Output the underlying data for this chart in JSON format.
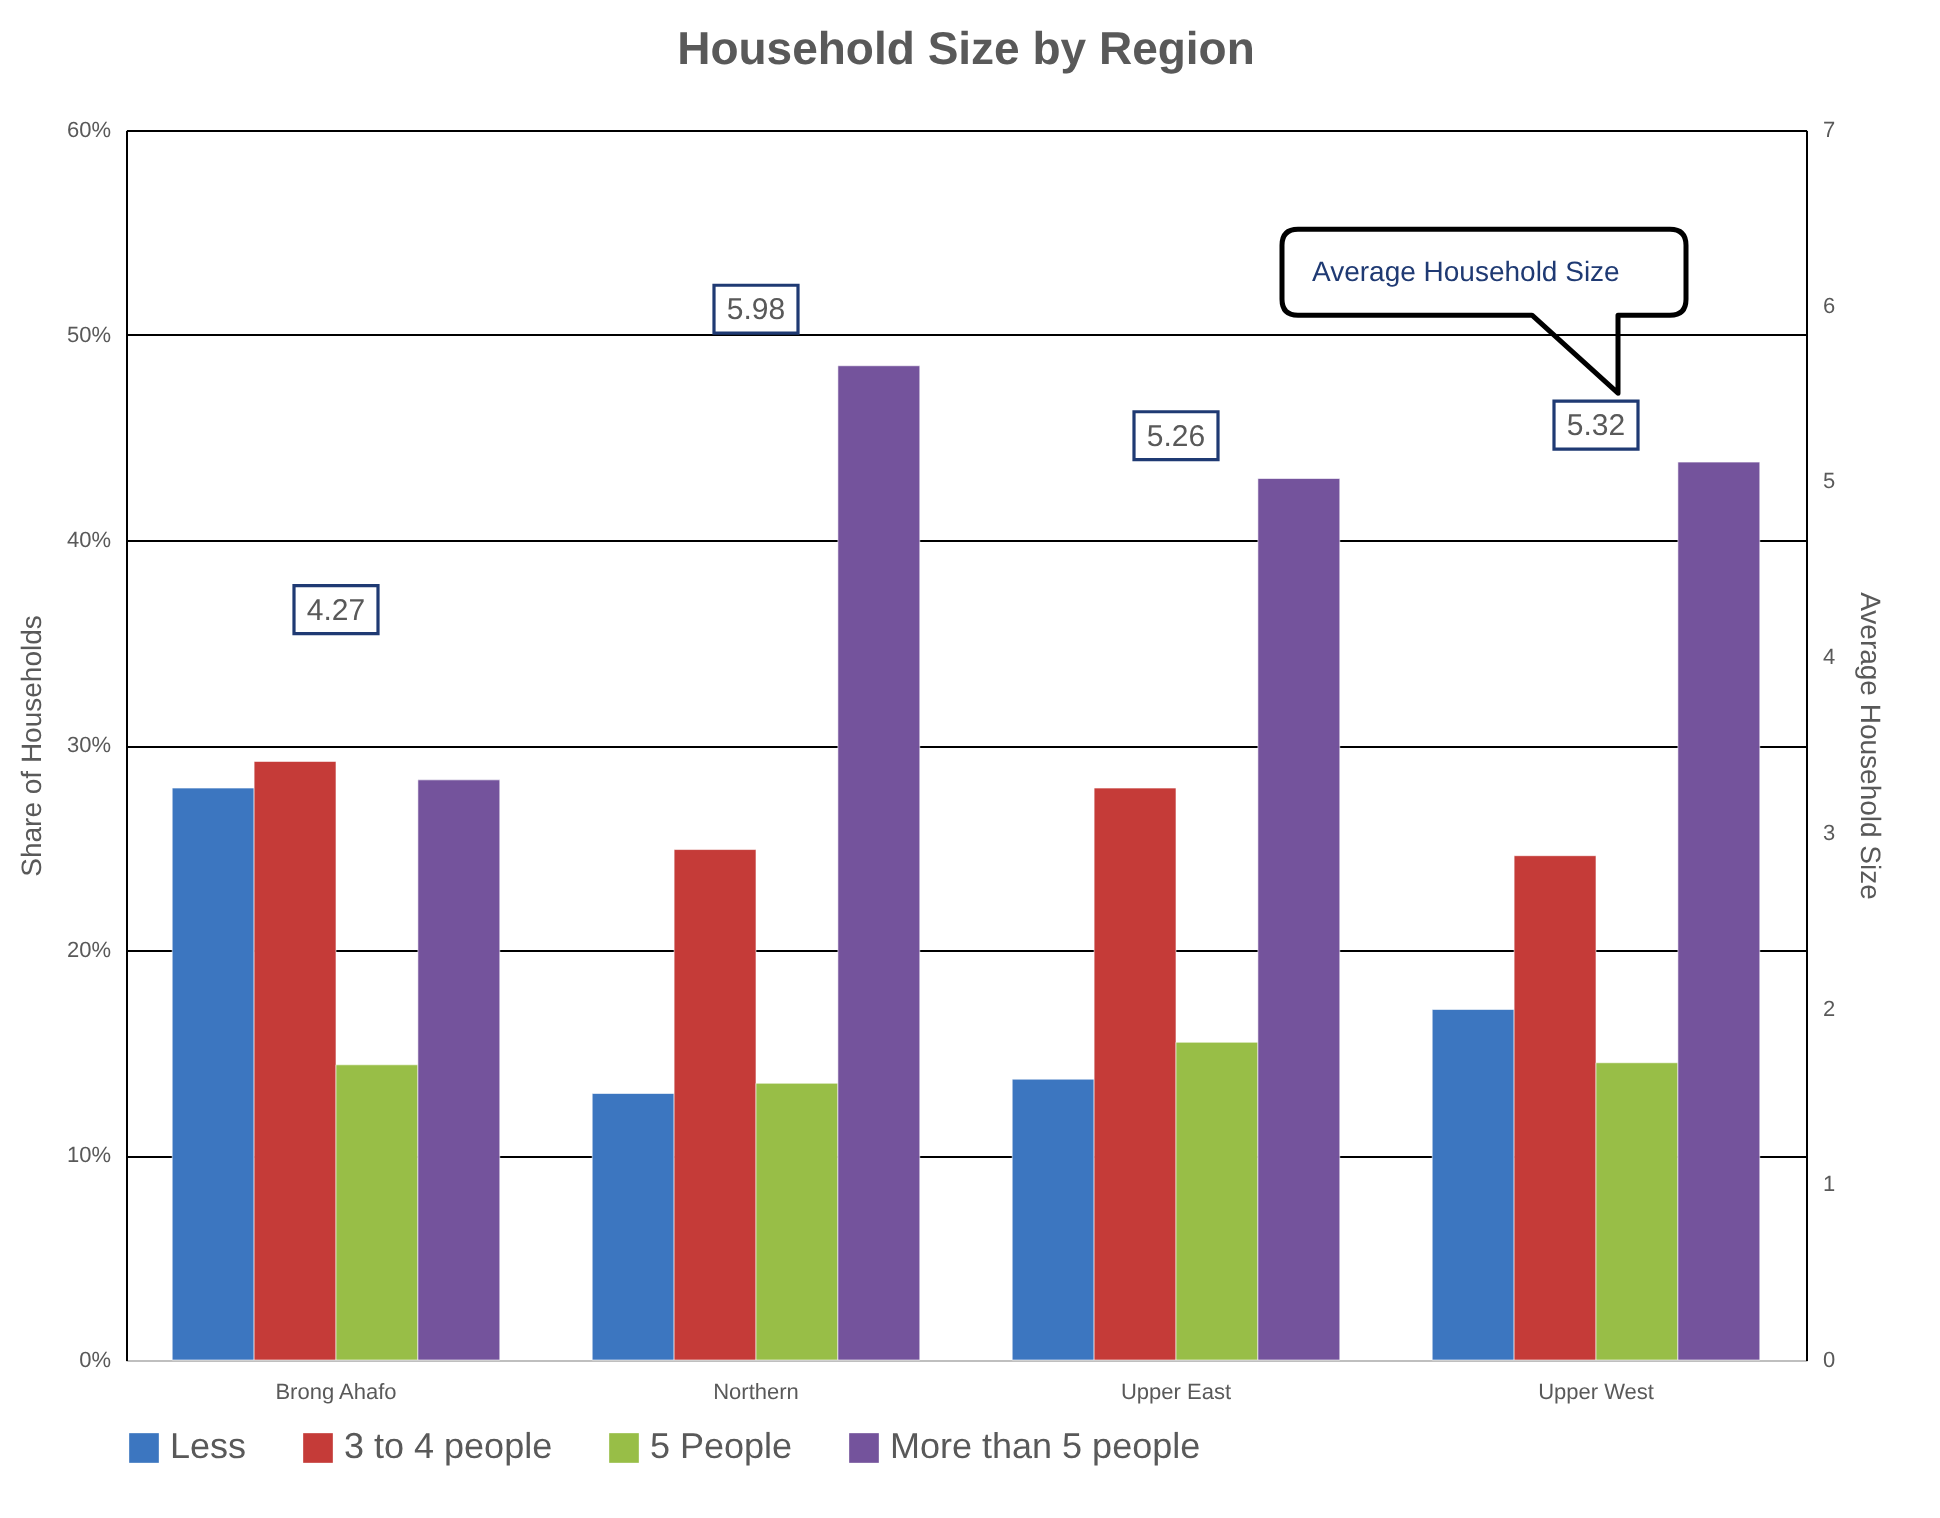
{
  "chart_data": {
    "type": "bar",
    "title": "Household Size by Region",
    "ylabel": "Share of Households",
    "y2label": "Average Household Size",
    "categories": [
      "Brong Ahafo",
      "Northern",
      "Upper East",
      "Upper West"
    ],
    "series": [
      {
        "name": "Less",
        "color": "#3c76c0",
        "values": [
          27.9,
          13.0,
          13.7,
          17.1
        ]
      },
      {
        "name": "3 to 4 people",
        "color": "#c53b38",
        "values": [
          29.2,
          24.9,
          27.9,
          24.6
        ]
      },
      {
        "name": "5 People",
        "color": "#98be47",
        "values": [
          14.4,
          13.5,
          15.5,
          14.5
        ]
      },
      {
        "name": "More than 5 people",
        "color": "#74539c",
        "values": [
          28.3,
          48.5,
          43.0,
          43.8
        ]
      },
      {
        "name": "Average Household Size",
        "type": "scatter",
        "axis": "y2",
        "color": "#1f3a73",
        "marker": "square",
        "values": [
          4.27,
          5.98,
          5.26,
          5.32
        ],
        "value_labels": [
          "4.27",
          "5.98",
          "5.26",
          "5.32"
        ]
      }
    ],
    "ylim": [
      0,
      60
    ],
    "yticks": [
      {
        "value": 0,
        "label": "0%"
      },
      {
        "value": 10,
        "label": "10%"
      },
      {
        "value": 20,
        "label": "20%"
      },
      {
        "value": 30,
        "label": "30%"
      },
      {
        "value": 40,
        "label": "40%"
      },
      {
        "value": 50,
        "label": "50%"
      },
      {
        "value": 60,
        "label": "60%"
      }
    ],
    "y2lim": [
      0,
      7
    ],
    "y2ticks": [
      0,
      1,
      2,
      3,
      4,
      5,
      6,
      7
    ],
    "grid": "y",
    "legend": "bottom"
  }
}
